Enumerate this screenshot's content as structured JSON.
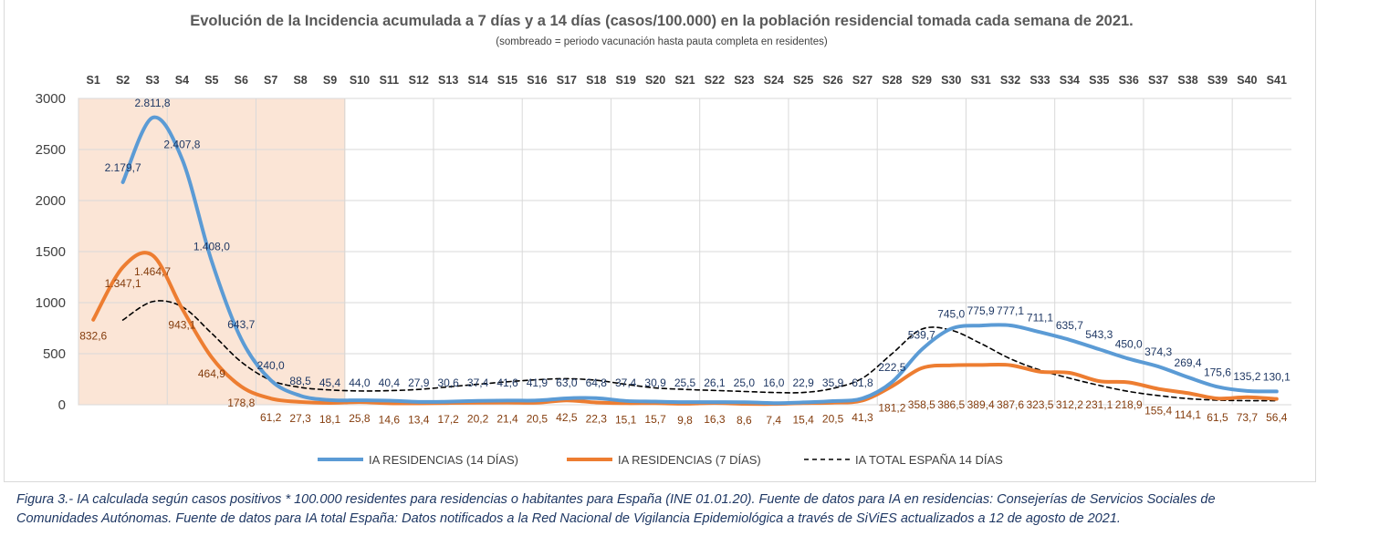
{
  "chart_data": {
    "type": "line",
    "title": "Evolución de la Incidencia acumulada a 7 días y a 14 días (casos/100.000) en la población residencial tomada cada semana de 2021.",
    "subtitle": "(sombreado = periodo vacunación hasta pauta completa en residentes)",
    "categories": [
      "S1",
      "S2",
      "S3",
      "S4",
      "S5",
      "S6",
      "S7",
      "S8",
      "S9",
      "S10",
      "S11",
      "S12",
      "S13",
      "S14",
      "S15",
      "S16",
      "S17",
      "S18",
      "S19",
      "S20",
      "S21",
      "S22",
      "S23",
      "S24",
      "S25",
      "S26",
      "S27",
      "S28",
      "S29",
      "S30",
      "S31",
      "S32",
      "S33",
      "S34",
      "S35",
      "S36",
      "S37",
      "S38",
      "S39",
      "S40",
      "S41"
    ],
    "ylim": [
      0,
      3000
    ],
    "yticks": [
      0,
      500,
      1000,
      1500,
      2000,
      2500,
      3000
    ],
    "grid": true,
    "legend_position": "bottom",
    "shaded_range": [
      "S1",
      "S9"
    ],
    "shade_color": "#fbe5d6",
    "series": [
      {
        "name": "IA RESIDENCIAS (14 DÍAS)",
        "color": "#5b9bd5",
        "style": "solid",
        "label_color": "#1f3864",
        "values": [
          null,
          2179.7,
          2811.8,
          2407.8,
          1408.0,
          643.7,
          240.0,
          88.5,
          45.4,
          44.0,
          40.4,
          27.9,
          30.6,
          37.4,
          41.6,
          41.9,
          63.0,
          64.8,
          37.4,
          30.9,
          25.5,
          26.1,
          25.0,
          16.0,
          22.9,
          35.9,
          61.8,
          222.5,
          539.7,
          745.0,
          775.9,
          777.1,
          711.1,
          635.7,
          543.3,
          450.0,
          374.3,
          269.4,
          175.6,
          135.2,
          130.1
        ],
        "labels": [
          "",
          "2.179,7",
          "2.811,8",
          "2.407,8",
          "1.408,0",
          "643,7",
          "240,0",
          "88,5",
          "45,4",
          "44,0",
          "40,4",
          "27,9",
          "30,6",
          "37,4",
          "41,6",
          "41,9",
          "63,0",
          "64,8",
          "37,4",
          "30,9",
          "25,5",
          "26,1",
          "25,0",
          "16,0",
          "22,9",
          "35,9",
          "61,8",
          "222,5",
          "539,7",
          "745,0",
          "775,9",
          "777,1",
          "711,1",
          "635,7",
          "543,3",
          "450,0",
          "374,3",
          "269,4",
          "175,6",
          "135,2",
          "130,1"
        ]
      },
      {
        "name": "IA RESIDENCIAS (7 DÍAS)",
        "color": "#ed7d31",
        "style": "solid",
        "label_color": "#843c0c",
        "values": [
          832.6,
          1347.1,
          1464.7,
          943.1,
          464.9,
          178.8,
          61.2,
          27.3,
          18.1,
          25.8,
          14.6,
          13.4,
          17.2,
          20.2,
          21.4,
          20.5,
          42.5,
          22.3,
          15.1,
          15.7,
          9.8,
          16.3,
          8.6,
          7.4,
          15.4,
          20.5,
          41.3,
          181.2,
          358.5,
          386.5,
          389.4,
          387.6,
          323.5,
          312.2,
          231.1,
          218.9,
          155.4,
          114.1,
          61.5,
          73.7,
          56.4
        ],
        "labels": [
          "832,6",
          "1.347,1",
          "1.464,7",
          "943,1",
          "464,9",
          "178,8",
          "61,2",
          "27,3",
          "18,1",
          "25,8",
          "14,6",
          "13,4",
          "17,2",
          "20,2",
          "21,4",
          "20,5",
          "42,5",
          "22,3",
          "15,1",
          "15,7",
          "9,8",
          "16,3",
          "8,6",
          "7,4",
          "15,4",
          "20,5",
          "41,3",
          "181,2",
          "358,5",
          "386,5",
          "389,4",
          "387,6",
          "323,5",
          "312,2",
          "231,1",
          "218,9",
          "155,4",
          "114,1",
          "61,5",
          "73,7",
          "56,4"
        ]
      },
      {
        "name": "IA TOTAL ESPAÑA 14 DÍAS",
        "color": "#000000",
        "style": "dashed",
        "values": [
          null,
          830,
          1010,
          960,
          700,
          420,
          240,
          170,
          145,
          135,
          138,
          150,
          175,
          200,
          225,
          245,
          255,
          240,
          200,
          165,
          150,
          140,
          130,
          120,
          120,
          160,
          260,
          500,
          740,
          730,
          600,
          450,
          340,
          260,
          190,
          130,
          90,
          60,
          45,
          40,
          40
        ]
      }
    ]
  },
  "caption": {
    "line1": "Figura 3.- IA calculada según casos positivos * 100.000 residentes para residencias o habitantes para España (INE 01.01.20). Fuente de datos para IA en residencias: Consejerías de Servicios Sociales de",
    "line2": "Comunidades Autónomas. Fuente de datos para IA total España: Datos notificados a la Red Nacional de Vigilancia Epidemiológica a través de SiViES actualizados a 12 de agosto de 2021."
  }
}
